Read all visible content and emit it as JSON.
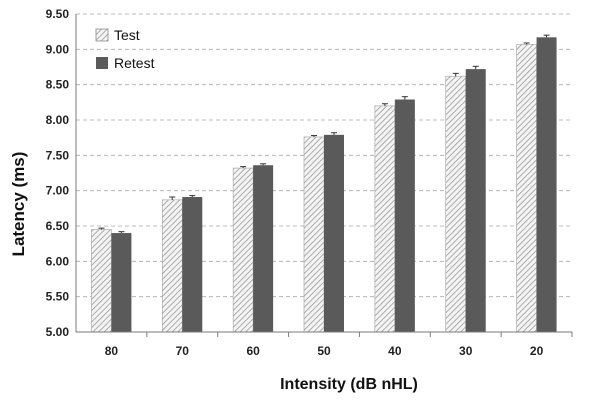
{
  "chart_data": {
    "type": "bar",
    "xlabel": "Intensity (dB nHL)",
    "ylabel": "Latency (ms)",
    "ylim": [
      5.0,
      9.5
    ],
    "yticks": [
      "5.00",
      "5.50",
      "6.00",
      "6.50",
      "7.00",
      "7.50",
      "8.00",
      "8.50",
      "9.00",
      "9.50"
    ],
    "categories": [
      "80",
      "70",
      "60",
      "50",
      "40",
      "30",
      "20"
    ],
    "series": [
      {
        "name": "Test",
        "values": [
          6.45,
          6.87,
          7.32,
          7.76,
          8.2,
          8.62,
          9.07
        ],
        "errors": [
          0.02,
          0.04,
          0.02,
          0.02,
          0.03,
          0.04,
          0.02
        ],
        "pattern": "hatched",
        "color": "#b8b8b8"
      },
      {
        "name": "Retest",
        "values": [
          6.4,
          6.91,
          7.36,
          7.79,
          8.29,
          8.72,
          9.17
        ],
        "errors": [
          0.02,
          0.02,
          0.02,
          0.03,
          0.04,
          0.04,
          0.03
        ],
        "pattern": "solid",
        "color": "#5a5a5a"
      }
    ],
    "grid": true,
    "legend_position": "top-left"
  }
}
